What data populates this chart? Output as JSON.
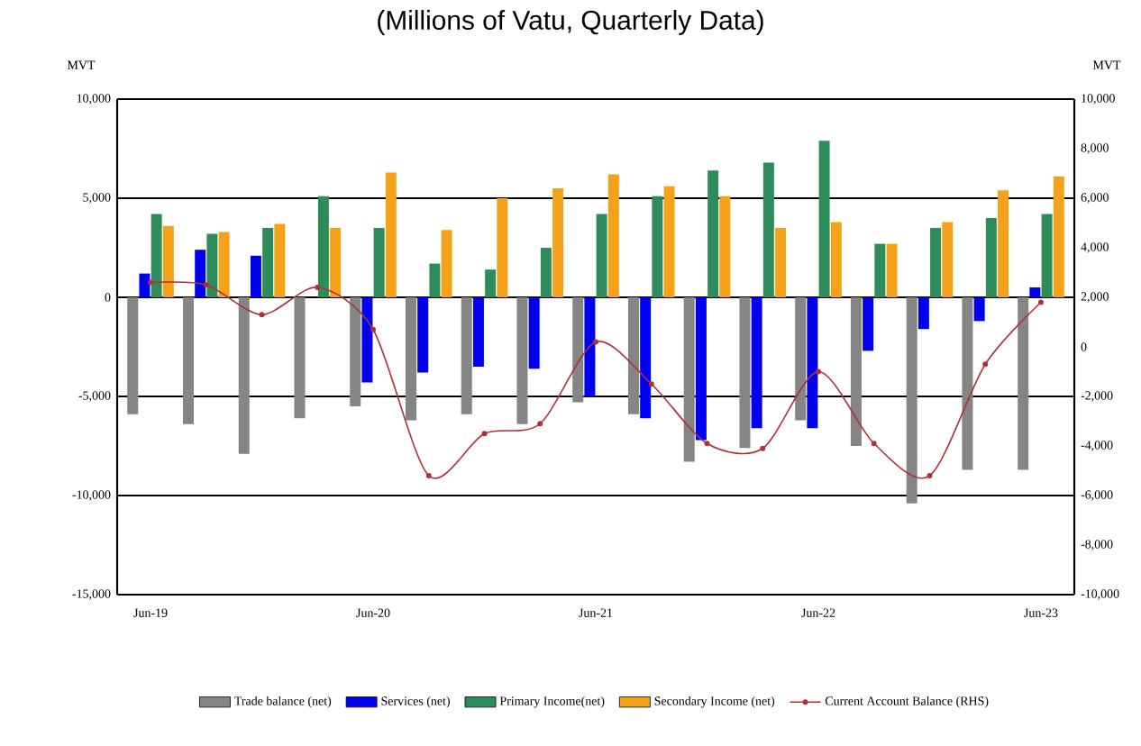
{
  "chart_data": {
    "type": "bar",
    "title": "(Millions of Vatu, Quarterly Data)",
    "ylabel": "MVT",
    "y2label": "MVT",
    "categories": [
      "Jun-19",
      null,
      null,
      null,
      "Jun-20",
      null,
      null,
      null,
      "Jun-21",
      null,
      null,
      null,
      "Jun-22",
      null,
      null,
      null,
      "Jun-23"
    ],
    "series": [
      {
        "name": "Trade balance (net)",
        "color": "#858585",
        "values": [
          -5900,
          -6400,
          -7900,
          -6100,
          -5500,
          -6200,
          -5900,
          -6400,
          -5300,
          -5900,
          -8300,
          -7600,
          -6200,
          -7500,
          -10400,
          -8700,
          -8700
        ]
      },
      {
        "name": "Services (net)",
        "color": "#0000ee",
        "values": [
          1200,
          2400,
          2100,
          0,
          -4300,
          -3800,
          -3500,
          -3600,
          -5000,
          -6100,
          -7200,
          -6600,
          -6600,
          -2700,
          -1600,
          -1200,
          500
        ]
      },
      {
        "name": "Primary Income(net)",
        "color": "#2e8b5a",
        "values": [
          4200,
          3200,
          3500,
          5100,
          3500,
          1700,
          1400,
          2500,
          4200,
          5100,
          6400,
          6800,
          7900,
          2700,
          3500,
          4000,
          4200
        ]
      },
      {
        "name": "Secondary Income (net)",
        "color": "#f5a21b",
        "values": [
          3600,
          3300,
          3700,
          3500,
          6300,
          3400,
          5000,
          5500,
          6200,
          5600,
          5100,
          3500,
          3800,
          2700,
          3800,
          5400,
          6100
        ]
      },
      {
        "name": "Current Account Balance (RHS)",
        "type": "line",
        "axis": "y2",
        "color": "#b0303a",
        "values": [
          2600,
          2500,
          1300,
          2400,
          700,
          -5200,
          -3500,
          -3100,
          200,
          -1500,
          -3900,
          -4100,
          -1000,
          -3900,
          -5200,
          -700,
          1800
        ]
      }
    ],
    "ylim": [
      -15000,
      10000
    ],
    "yticks": [
      {
        "value": -15000,
        "label": "-15,000"
      },
      {
        "value": -10000,
        "label": "-10,000"
      },
      {
        "value": -5000,
        "label": "-5,000"
      },
      0,
      {
        "value": 5000,
        "label": "5,000"
      },
      {
        "value": 10000,
        "label": "10,000"
      }
    ],
    "y2lim": [
      -10000,
      10000
    ],
    "y2ticks": [
      {
        "value": -10000,
        "label": "-10,000"
      },
      {
        "value": -8000,
        "label": "-8,000"
      },
      {
        "value": -6000,
        "label": "-6,000"
      },
      {
        "value": -4000,
        "label": "-4,000"
      },
      {
        "value": -2000,
        "label": "-2,000"
      },
      0,
      {
        "value": 2000,
        "label": "2,000"
      },
      {
        "value": 4000,
        "label": "4,000"
      },
      {
        "value": 6000,
        "label": "6,000"
      },
      {
        "value": 8000,
        "label": "8,000"
      },
      {
        "value": 10000,
        "label": "10,000"
      }
    ],
    "grid": "y",
    "legend": "bottom",
    "marker": "circle",
    "line_style": "solid"
  }
}
